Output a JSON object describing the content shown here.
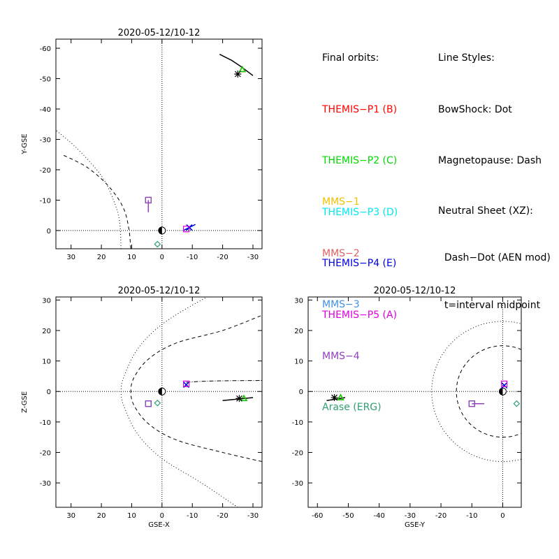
{
  "legend": {
    "final_orbits_title": "Final orbits:",
    "themis": [
      {
        "label": "THEMIS−P1 (B)",
        "color": "#ff0000"
      },
      {
        "label": "THEMIS−P2 (C)",
        "color": "#00d800"
      },
      {
        "label": "THEMIS−P3 (D)",
        "color": "#00e8f0"
      },
      {
        "label": "THEMIS−P4 (E)",
        "color": "#0000e0"
      },
      {
        "label": "THEMIS−P5 (A)",
        "color": "#e000e0"
      }
    ],
    "mms": [
      {
        "label": "MMS−1",
        "color": "#f0c000"
      },
      {
        "label": "MMS−2",
        "color": "#e06060"
      },
      {
        "label": "MMS−3",
        "color": "#4090e0"
      },
      {
        "label": "MMS−4",
        "color": "#9040c0"
      },
      {
        "label": "Arase (ERG)",
        "color": "#30a070"
      }
    ],
    "line_styles_title": "Line Styles:",
    "line_styles": [
      "BowShock: Dot",
      "Magnetopause: Dash",
      "Neutral Sheet (XZ):",
      "  Dash−Dot (AEN mod)",
      "  t=interval midpoint"
    ]
  },
  "chart_data": [
    {
      "type": "scatter",
      "title": "2020-05-12/10-12",
      "xlabel": "",
      "ylabel": "Y-GSE",
      "xlim": [
        35,
        -33
      ],
      "ylim": [
        6,
        -63
      ],
      "xticks": [
        30,
        20,
        10,
        0,
        -10,
        -20,
        -30
      ],
      "yticks": [
        0,
        -10,
        -20,
        -30,
        -40,
        -50,
        -60
      ],
      "bowshock": [
        [
          13.5,
          6
        ],
        [
          14,
          -3
        ],
        [
          16,
          -10
        ],
        [
          20,
          -18
        ],
        [
          28,
          -27
        ],
        [
          35,
          -33
        ]
      ],
      "magnetopause": [
        [
          10.3,
          6
        ],
        [
          11,
          -1
        ],
        [
          13,
          -8
        ],
        [
          18,
          -15
        ],
        [
          25,
          -21
        ],
        [
          33,
          -25
        ]
      ],
      "earth": [
        0,
        0
      ],
      "positions": [
        {
          "name": "THEMIS-P1 (B)",
          "x": -26.5,
          "y": -53
        },
        {
          "name": "THEMIS-P2 (C)",
          "x": -26.5,
          "y": -53
        },
        {
          "name": "THEMIS-P3 (D)",
          "x": -9,
          "y": -1
        },
        {
          "name": "THEMIS-P4 (E)",
          "x": -9,
          "y": -1
        },
        {
          "name": "THEMIS-P5 (A)",
          "x": -8,
          "y": -0.5
        },
        {
          "name": "MMS-1",
          "x": 4.5,
          "y": -10
        },
        {
          "name": "MMS-2",
          "x": 4.5,
          "y": -10
        },
        {
          "name": "MMS-3",
          "x": 4.5,
          "y": -10
        },
        {
          "name": "MMS-4",
          "x": 4.5,
          "y": -10
        },
        {
          "name": "Arase (ERG)",
          "x": 1.5,
          "y": 4.5
        }
      ],
      "x_range_note": "",
      "grid": false,
      "orbit_track": [
        [
          -19,
          -58
        ],
        [
          -23,
          -56
        ],
        [
          -26,
          -54
        ],
        [
          -30,
          -51
        ]
      ],
      "mms_track": [
        [
          4.5,
          -10
        ],
        [
          4.5,
          -6
        ]
      ],
      "themis_tracks": [
        [
          [
            -7,
            0
          ],
          [
            -11,
            -2
          ]
        ]
      ],
      "axes": [
        "x",
        "y"
      ]
    },
    {
      "type": "scatter",
      "title": "2020-05-12/10-12",
      "xlabel": "GSE-X",
      "ylabel": "Z-GSE",
      "xlim": [
        35,
        -33
      ],
      "ylim": [
        -38,
        31
      ],
      "xticks": [
        30,
        20,
        10,
        0,
        -10,
        -20,
        -30
      ],
      "yticks": [
        -30,
        -20,
        -10,
        0,
        10,
        20,
        30
      ],
      "earth": [
        0,
        0
      ],
      "bowshock": [
        [
          -25,
          -38
        ],
        [
          -13,
          -30
        ],
        [
          0,
          -22
        ],
        [
          8,
          -14
        ],
        [
          12.5,
          -5
        ],
        [
          13.5,
          0
        ],
        [
          12.5,
          5
        ],
        [
          8,
          14
        ],
        [
          0,
          22
        ],
        [
          -13,
          30
        ],
        [
          -20,
          33
        ]
      ],
      "magnetopause": [
        [
          -33,
          -23
        ],
        [
          -20,
          -20
        ],
        [
          -5,
          -16
        ],
        [
          4,
          -11
        ],
        [
          9,
          -5
        ],
        [
          10.3,
          0
        ],
        [
          9,
          5
        ],
        [
          4,
          11
        ],
        [
          -5,
          16
        ],
        [
          -20,
          20
        ],
        [
          -33,
          25
        ]
      ],
      "neutral_sheet": [
        [
          -8,
          3
        ],
        [
          -13,
          3.3
        ],
        [
          -20,
          3.5
        ],
        [
          -33,
          3.6
        ]
      ],
      "positions": [
        {
          "name": "THEMIS-P1 (B)",
          "x": -27,
          "y": -2.3
        },
        {
          "name": "THEMIS-P2 (C)",
          "x": -27,
          "y": -2.3
        },
        {
          "name": "THEMIS-P3 (D)",
          "x": -8,
          "y": 2.2
        },
        {
          "name": "THEMIS-P4 (E)",
          "x": -8,
          "y": 2.2
        },
        {
          "name": "THEMIS-P5 (A)",
          "x": -8,
          "y": 2.5
        },
        {
          "name": "MMS-1",
          "x": 4.5,
          "y": -4
        },
        {
          "name": "MMS-2",
          "x": 4.5,
          "y": -4
        },
        {
          "name": "MMS-3",
          "x": 4.5,
          "y": -4
        },
        {
          "name": "MMS-4",
          "x": 4.5,
          "y": -4
        },
        {
          "name": "Arase (ERG)",
          "x": 1.5,
          "y": -3.8
        }
      ],
      "orbit_track": [
        [
          -20,
          -3
        ],
        [
          -25,
          -2.5
        ],
        [
          -30,
          -2
        ]
      ],
      "grid": false,
      "axes": [
        "x",
        "z"
      ]
    },
    {
      "type": "scatter",
      "title": "2020-05-12/10-12",
      "xlabel": "GSE-Y",
      "ylabel": "",
      "xlim": [
        -63,
        6
      ],
      "ylim": [
        -38,
        31
      ],
      "xticks": [
        -60,
        -50,
        -40,
        -30,
        -20,
        -10,
        0
      ],
      "yticks": [
        -30,
        -20,
        -10,
        0,
        10,
        20,
        30
      ],
      "earth": [
        0,
        0
      ],
      "bowshock_radius": 23,
      "magnetopause_radius": 15,
      "positions": [
        {
          "name": "THEMIS-P1 (B)",
          "x": -52.5,
          "y": -2
        },
        {
          "name": "THEMIS-P2 (C)",
          "x": -52.5,
          "y": -2
        },
        {
          "name": "THEMIS-P3 (D)",
          "x": 0.5,
          "y": 2
        },
        {
          "name": "THEMIS-P4 (E)",
          "x": 0.5,
          "y": 2
        },
        {
          "name": "THEMIS-P5 (A)",
          "x": 0.5,
          "y": 2.5
        },
        {
          "name": "MMS-1",
          "x": -10,
          "y": -4
        },
        {
          "name": "MMS-2",
          "x": -10,
          "y": -4
        },
        {
          "name": "MMS-3",
          "x": -10,
          "y": -4
        },
        {
          "name": "MMS-4",
          "x": -10,
          "y": -4
        },
        {
          "name": "Arase (ERG)",
          "x": 4.5,
          "y": -4
        }
      ],
      "orbit_track": [
        [
          -57,
          -3
        ],
        [
          -54,
          -2.5
        ],
        [
          -51,
          -2
        ]
      ],
      "mms_track": [
        [
          -10,
          -4
        ],
        [
          -6,
          -4
        ]
      ],
      "grid": false,
      "axes": [
        "y",
        "z"
      ]
    }
  ]
}
